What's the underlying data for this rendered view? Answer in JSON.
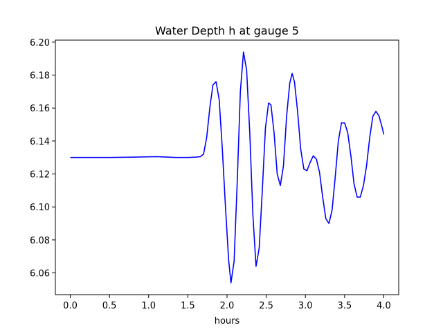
{
  "chart_data": {
    "type": "line",
    "title": "Water Depth h at gauge 5",
    "xlabel": "hours",
    "ylabel": "",
    "xlim": [
      -0.19,
      4.19
    ],
    "ylim": [
      6.0468,
      6.2012
    ],
    "xticks": [
      0.0,
      0.5,
      1.0,
      1.5,
      2.0,
      2.5,
      3.0,
      3.5,
      4.0
    ],
    "xtick_labels": [
      "0.0",
      "0.5",
      "1.0",
      "1.5",
      "2.0",
      "2.5",
      "3.0",
      "3.5",
      "4.0"
    ],
    "yticks": [
      6.06,
      6.08,
      6.1,
      6.12,
      6.14,
      6.16,
      6.18,
      6.2
    ],
    "ytick_labels": [
      "6.06",
      "6.08",
      "6.10",
      "6.12",
      "6.14",
      "6.16",
      "6.18",
      "6.20"
    ],
    "grid": false,
    "legend": "none",
    "series": [
      {
        "color": "#0000ff",
        "x": [
          0.0,
          0.5,
          0.8,
          1.0,
          1.1,
          1.2,
          1.35,
          1.5,
          1.6,
          1.66,
          1.7,
          1.74,
          1.78,
          1.82,
          1.86,
          1.9,
          1.94,
          1.98,
          2.02,
          2.05,
          2.09,
          2.13,
          2.17,
          2.21,
          2.25,
          2.29,
          2.33,
          2.37,
          2.41,
          2.45,
          2.49,
          2.53,
          2.56,
          2.6,
          2.64,
          2.68,
          2.72,
          2.76,
          2.8,
          2.83,
          2.86,
          2.9,
          2.94,
          2.98,
          3.02,
          3.06,
          3.1,
          3.14,
          3.18,
          3.22,
          3.26,
          3.3,
          3.34,
          3.38,
          3.42,
          3.46,
          3.5,
          3.54,
          3.58,
          3.62,
          3.66,
          3.7,
          3.74,
          3.78,
          3.82,
          3.86,
          3.9,
          3.94,
          3.98,
          4.0
        ],
        "y": [
          6.13,
          6.13,
          6.1302,
          6.1304,
          6.1305,
          6.1303,
          6.13,
          6.13,
          6.1302,
          6.1305,
          6.132,
          6.142,
          6.16,
          6.174,
          6.176,
          6.165,
          6.135,
          6.1,
          6.068,
          6.054,
          6.067,
          6.115,
          6.17,
          6.194,
          6.183,
          6.145,
          6.095,
          6.064,
          6.075,
          6.11,
          6.148,
          6.163,
          6.162,
          6.145,
          6.12,
          6.113,
          6.125,
          6.155,
          6.175,
          6.181,
          6.176,
          6.158,
          6.135,
          6.123,
          6.122,
          6.127,
          6.131,
          6.129,
          6.121,
          6.106,
          6.093,
          6.09,
          6.098,
          6.118,
          6.14,
          6.151,
          6.151,
          6.145,
          6.131,
          6.114,
          6.106,
          6.106,
          6.113,
          6.125,
          6.142,
          6.155,
          6.158,
          6.155,
          6.148,
          6.144
        ]
      }
    ]
  }
}
